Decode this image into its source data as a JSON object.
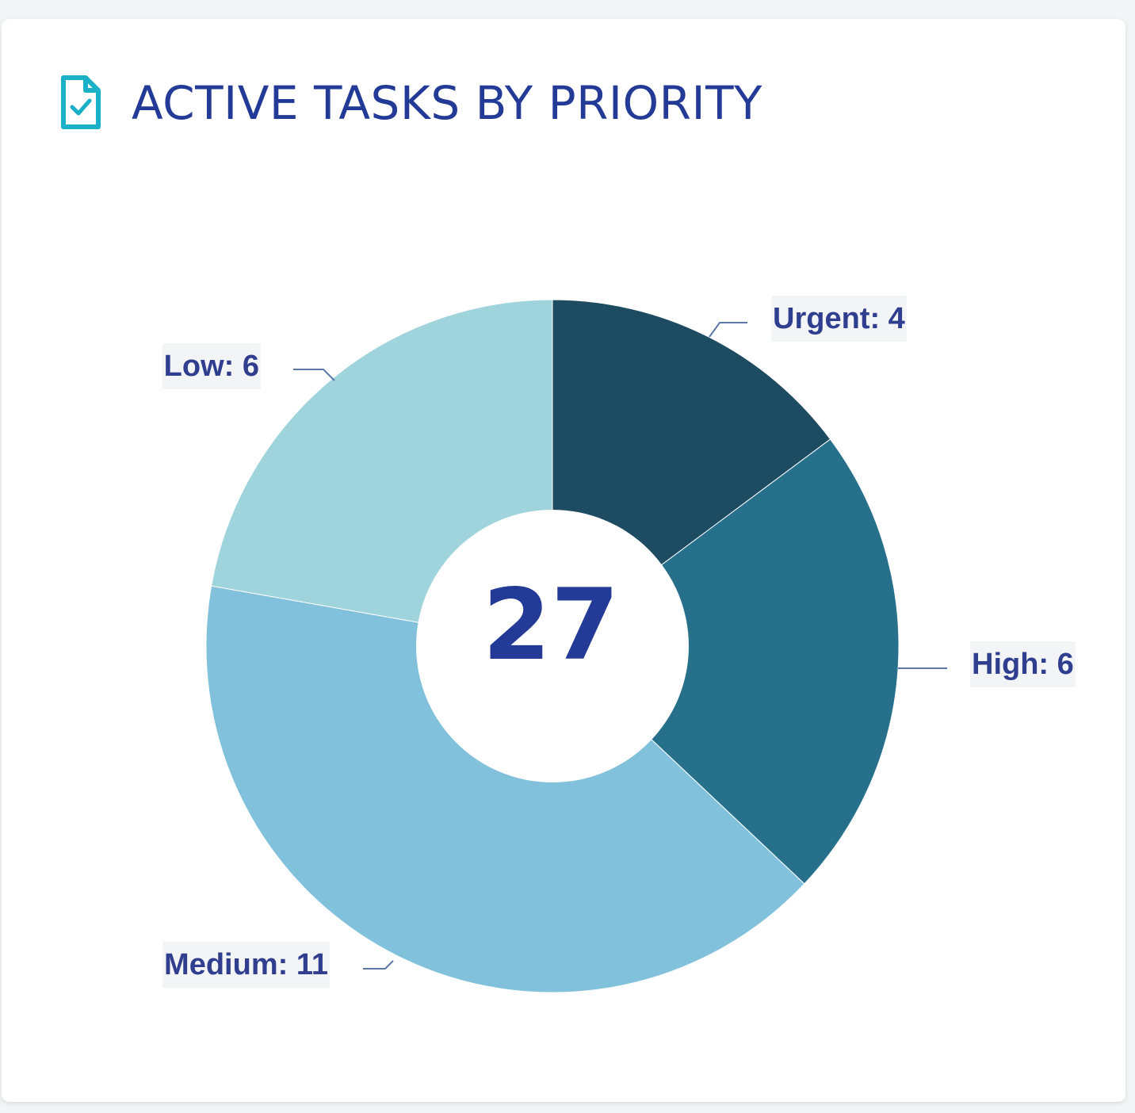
{
  "card": {
    "title": "ACTIVE TASKS BY PRIORITY",
    "icon": "document-check-icon"
  },
  "colors": {
    "title": "#233b96",
    "icon": "#1ab0c8",
    "label_text": "#2f3e8e",
    "label_bg": "#f3f4f6",
    "leader_line": "#5b78a8",
    "background": "#f3f4f6",
    "card": "#ffffff"
  },
  "chart_data": {
    "type": "pie",
    "donut": true,
    "center_label": "27",
    "slices": [
      {
        "label": "Urgent",
        "value": 4,
        "color": "#1d4b61",
        "display": "Urgent: 4"
      },
      {
        "label": "High",
        "value": 6,
        "color": "#27708c",
        "display": "High: 6"
      },
      {
        "label": "Medium",
        "value": 11,
        "color": "#82c1db",
        "display": "Medium: 11"
      },
      {
        "label": "Low",
        "value": 6,
        "color": "#9fd4dc",
        "display": "Low: 6"
      }
    ],
    "start_angle": "12 o'clock",
    "direction": "clockwise"
  }
}
